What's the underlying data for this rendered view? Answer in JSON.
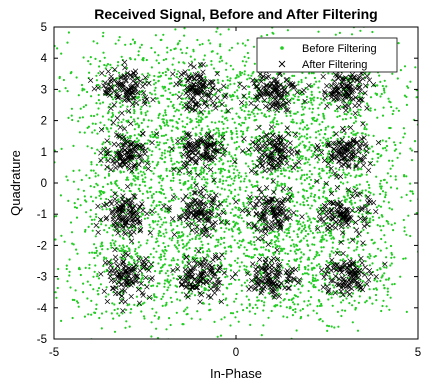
{
  "chart_data": {
    "type": "scatter",
    "title": "Received Signal, Before and After Filtering",
    "xlabel": "In-Phase",
    "ylabel": "Quadrature",
    "xlim": [
      -5,
      5
    ],
    "ylim": [
      -5,
      5
    ],
    "xticks": [
      "-5",
      "0",
      "5"
    ],
    "yticks": [
      "5",
      "4",
      "3",
      "2",
      "1",
      "0",
      "-1",
      "-2",
      "-3",
      "-4",
      "-5"
    ],
    "grid": false,
    "legend_position": "top-right",
    "constellation_points": {
      "x": [
        -3,
        -1,
        1,
        3
      ],
      "y": [
        -3,
        -1,
        1,
        3
      ]
    },
    "series": [
      {
        "name": "Before Filtering",
        "marker": "dot",
        "color": "#22cc22",
        "spread": "wide",
        "points_per_cluster": 260
      },
      {
        "name": "After Filtering",
        "marker": "x",
        "color": "#000000",
        "spread": "narrow",
        "points_per_cluster": 110
      }
    ]
  }
}
